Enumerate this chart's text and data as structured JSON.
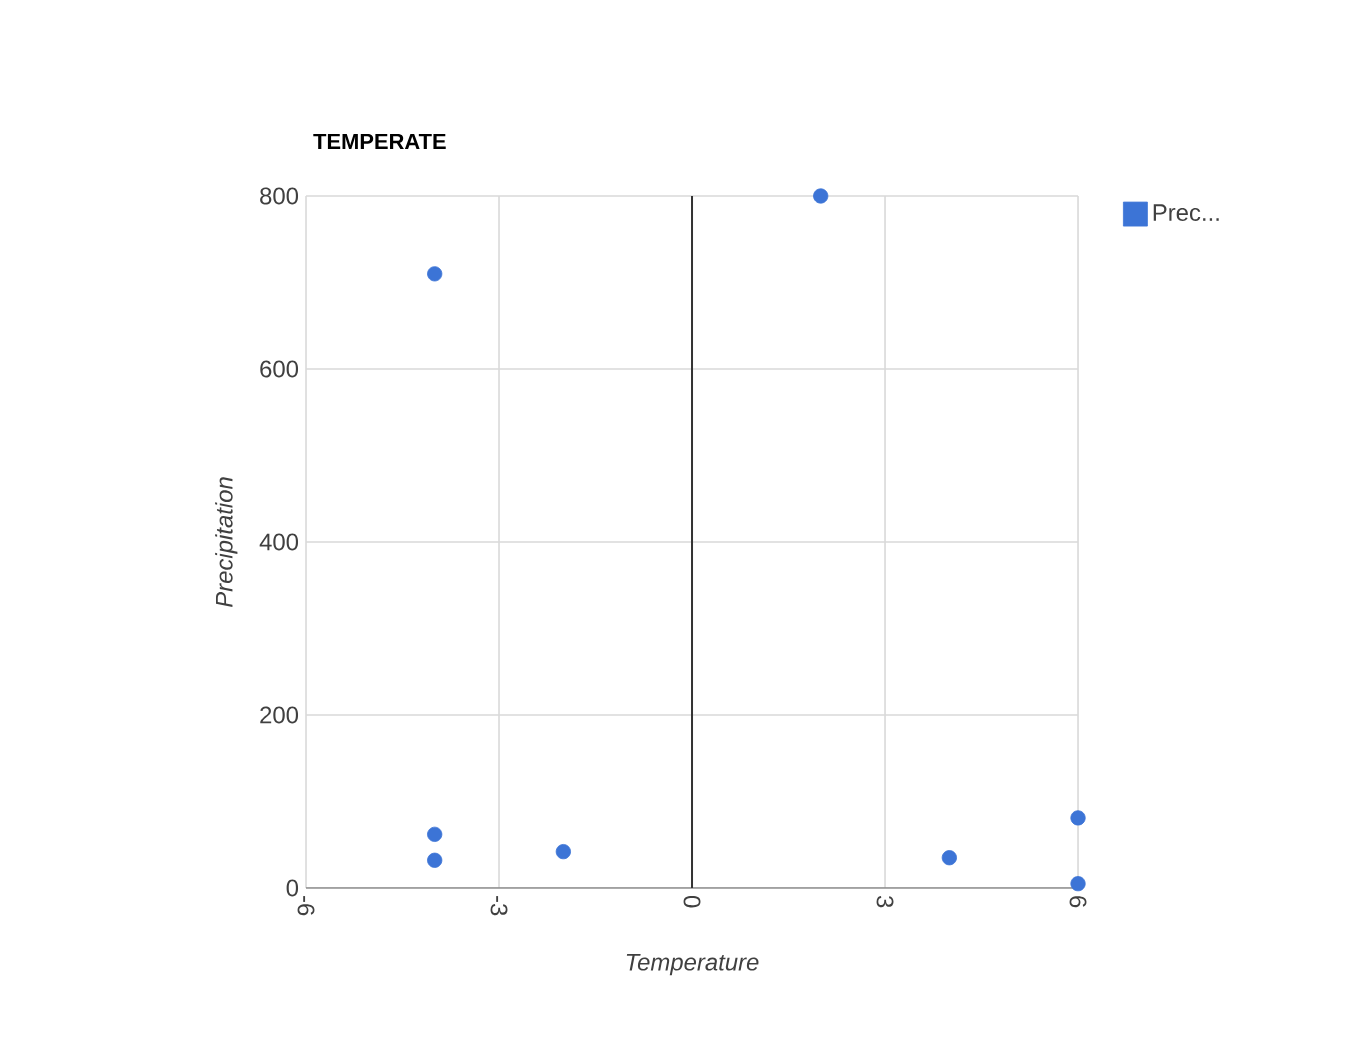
{
  "chart_data": {
    "type": "scatter",
    "title": "TEMPERATE",
    "xlabel": "Temperature",
    "ylabel": "Precipitation",
    "series": [
      {
        "name": "Prec...",
        "color": "#3c74d6",
        "x": [
          -4,
          2,
          -4,
          -4,
          -2,
          4,
          6,
          6
        ],
        "values": [
          710,
          800,
          62,
          32,
          42,
          35,
          81,
          5
        ]
      }
    ],
    "xlim": [
      -6,
      6
    ],
    "xticks": [
      -6,
      -3,
      0,
      3,
      6
    ],
    "ylim": [
      0,
      800
    ],
    "yticks": [
      0,
      200,
      400,
      600,
      800
    ],
    "ref_lines": [
      {
        "axis": "x",
        "value": 0,
        "color": "#333333"
      }
    ],
    "grid": true,
    "legend": "top right",
    "marker": "circle"
  }
}
